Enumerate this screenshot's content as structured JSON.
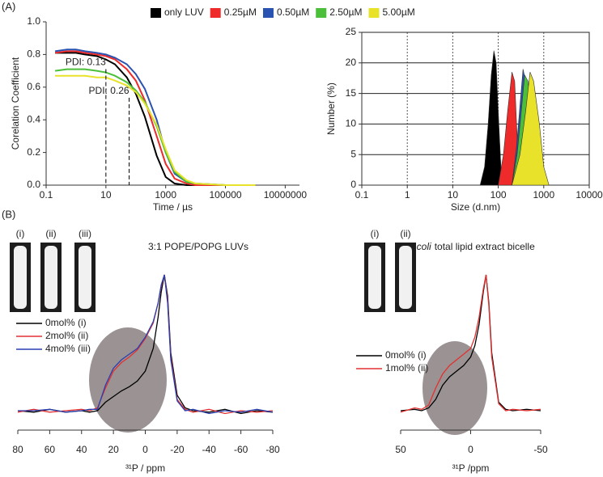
{
  "panel_labels": [
    "(A)",
    "(B)"
  ],
  "chart_data": [
    {
      "type": "line",
      "xlabel": "Time / µs",
      "ylabel": "Corelation Coefficient",
      "xlog": true,
      "xlim": [
        0.1,
        30000000
      ],
      "xticks": [
        0.1,
        10,
        1000,
        100000,
        10000000
      ],
      "ylim": [
        0,
        1
      ],
      "yticks": [
        {
          "value": 0,
          "label": "0.0"
        },
        0.2,
        0.4,
        0.6,
        0.8,
        {
          "value": 1,
          "label": "1.0"
        }
      ],
      "legend": "top",
      "x": [
        0.2,
        0.5,
        1,
        2,
        5,
        10,
        20,
        50,
        100,
        200,
        500,
        1000,
        2000,
        5000,
        10000,
        100000,
        1000000
      ],
      "series": [
        {
          "name": "only LUV",
          "color": "#000000",
          "values": [
            0.81,
            0.81,
            0.81,
            0.8,
            0.79,
            0.77,
            0.74,
            0.66,
            0.56,
            0.42,
            0.18,
            0.05,
            0.01,
            0,
            0,
            0,
            0
          ]
        },
        {
          "name": "0.25µM",
          "color": "#ee2a2a",
          "values": [
            0.81,
            0.82,
            0.82,
            0.81,
            0.8,
            0.79,
            0.77,
            0.71,
            0.64,
            0.52,
            0.3,
            0.13,
            0.04,
            0.01,
            0,
            0,
            0
          ]
        },
        {
          "name": "0.50µM",
          "color": "#2a52b0",
          "values": [
            0.82,
            0.83,
            0.83,
            0.82,
            0.81,
            0.8,
            0.78,
            0.74,
            0.68,
            0.59,
            0.4,
            0.2,
            0.07,
            0.02,
            0.01,
            0,
            0
          ]
        },
        {
          "name": "2.50µM",
          "color": "#4cbf3a",
          "values": [
            0.7,
            0.71,
            0.71,
            0.71,
            0.7,
            0.69,
            0.67,
            0.63,
            0.58,
            0.51,
            0.36,
            0.2,
            0.08,
            0.02,
            0.01,
            0,
            0
          ]
        },
        {
          "name": "5.00µM",
          "color": "#e8e22a",
          "values": [
            0.67,
            0.67,
            0.67,
            0.67,
            0.66,
            0.66,
            0.64,
            0.61,
            0.57,
            0.5,
            0.37,
            0.22,
            0.09,
            0.03,
            0.01,
            0,
            0
          ]
        }
      ],
      "annotations": [
        {
          "text": "PDI: 0.13",
          "x": 10,
          "y": 0.75
        },
        {
          "text": "PDI: 0.26",
          "x": 60,
          "y": 0.575
        }
      ]
    },
    {
      "type": "area",
      "xlabel": "Size (d.nm)",
      "ylabel": "Number (%)",
      "xlog": true,
      "grid": true,
      "xlim": [
        0.1,
        10000
      ],
      "xticks": [
        0.1,
        1,
        10,
        100,
        1000,
        10000
      ],
      "ylim": [
        0,
        25
      ],
      "yticks": [
        0,
        5,
        10,
        15,
        20,
        25
      ],
      "series": [
        {
          "color": "#000000",
          "x": [
            40,
            50,
            60,
            70,
            80,
            90,
            100,
            120
          ],
          "values": [
            0,
            3,
            10,
            18,
            22,
            20,
            12,
            0
          ]
        },
        {
          "color": "#ee2a2a",
          "x": [
            100,
            130,
            160,
            200,
            230,
            260,
            300
          ],
          "values": [
            0,
            5,
            12,
            18.5,
            17,
            8,
            0
          ]
        },
        {
          "color": "#2a52b0",
          "x": [
            200,
            250,
            300,
            350,
            400,
            500,
            600,
            800
          ],
          "values": [
            0,
            6,
            13,
            19,
            17,
            10,
            4,
            0
          ]
        },
        {
          "color": "#4cbf3a",
          "x": [
            200,
            260,
            320,
            380,
            450,
            550,
            700,
            900
          ],
          "values": [
            0,
            5,
            12,
            18,
            17,
            10,
            3,
            0
          ]
        },
        {
          "color": "#e8e22a",
          "x": [
            200,
            300,
            400,
            500,
            600,
            800,
            1000,
            1300
          ],
          "values": [
            0,
            5,
            12,
            18.5,
            17,
            10,
            3,
            0
          ]
        }
      ]
    },
    {
      "type": "spectrum",
      "title": "3:1 POPE/POPG LUVs",
      "xlabel": "³¹P / ppm",
      "xlim": [
        80,
        -80
      ],
      "xticks": [
        80,
        60,
        40,
        20,
        0,
        -20,
        -40,
        -60,
        -80
      ],
      "ylim": [
        0,
        1
      ],
      "photos": [
        "(i)",
        "(ii)",
        "(iii)"
      ],
      "legend": "left",
      "x": [
        80,
        70,
        60,
        50,
        40,
        35,
        30,
        25,
        20,
        15,
        10,
        5,
        0,
        -5,
        -8,
        -10,
        -12,
        -14,
        -16,
        -20,
        -25,
        -30,
        -40,
        -50,
        -60,
        -70,
        -80
      ],
      "series": [
        {
          "name": "0mol% (i)",
          "color": "#000000",
          "values": [
            0.04,
            0.03,
            0.05,
            0.03,
            0.04,
            0.03,
            0.04,
            0.1,
            0.14,
            0.18,
            0.21,
            0.25,
            0.32,
            0.48,
            0.7,
            0.88,
            1.0,
            0.85,
            0.45,
            0.15,
            0.06,
            0.04,
            0.03,
            0.05,
            0.02,
            0.04,
            0.03
          ]
        },
        {
          "name": "2mol% (ii)",
          "color": "#e23030",
          "values": [
            0.03,
            0.05,
            0.03,
            0.04,
            0.05,
            0.04,
            0.06,
            0.2,
            0.32,
            0.38,
            0.42,
            0.47,
            0.55,
            0.66,
            0.8,
            0.92,
            1.0,
            0.82,
            0.42,
            0.12,
            0.05,
            0.03,
            0.05,
            0.02,
            0.04,
            0.03,
            0.04
          ]
        },
        {
          "name": "4mol% (iii)",
          "color": "#2a3fb0",
          "values": [
            0.04,
            0.04,
            0.05,
            0.03,
            0.04,
            0.05,
            0.05,
            0.22,
            0.34,
            0.4,
            0.44,
            0.48,
            0.56,
            0.67,
            0.8,
            0.93,
            1.0,
            0.8,
            0.4,
            0.11,
            0.04,
            0.05,
            0.02,
            0.04,
            0.03,
            0.05,
            0.03
          ]
        }
      ]
    },
    {
      "type": "spectrum",
      "title_italic": "E. coli",
      "title": "total lipid extract bicelle",
      "xlabel": "³¹P /ppm",
      "xlim": [
        50,
        -50
      ],
      "xticks": [
        50,
        0,
        -50
      ],
      "ylim": [
        0,
        1
      ],
      "photos": [
        "(i)",
        "(ii)"
      ],
      "legend": "left",
      "x": [
        50,
        40,
        35,
        30,
        25,
        20,
        15,
        10,
        5,
        0,
        -3,
        -6,
        -9,
        -11,
        -13,
        -15,
        -20,
        -25,
        -30,
        -40,
        -50
      ],
      "series": [
        {
          "name": "0mol% (i)",
          "color": "#000000",
          "values": [
            0.04,
            0.05,
            0.04,
            0.06,
            0.12,
            0.22,
            0.28,
            0.32,
            0.36,
            0.42,
            0.5,
            0.65,
            0.88,
            1.0,
            0.8,
            0.45,
            0.1,
            0.05,
            0.04,
            0.05,
            0.04
          ]
        },
        {
          "name": "1mol% (ii)",
          "color": "#e23030",
          "values": [
            0.03,
            0.06,
            0.05,
            0.08,
            0.2,
            0.3,
            0.36,
            0.4,
            0.44,
            0.48,
            0.56,
            0.7,
            0.9,
            1.0,
            0.78,
            0.42,
            0.09,
            0.04,
            0.05,
            0.04,
            0.05
          ]
        }
      ]
    }
  ]
}
